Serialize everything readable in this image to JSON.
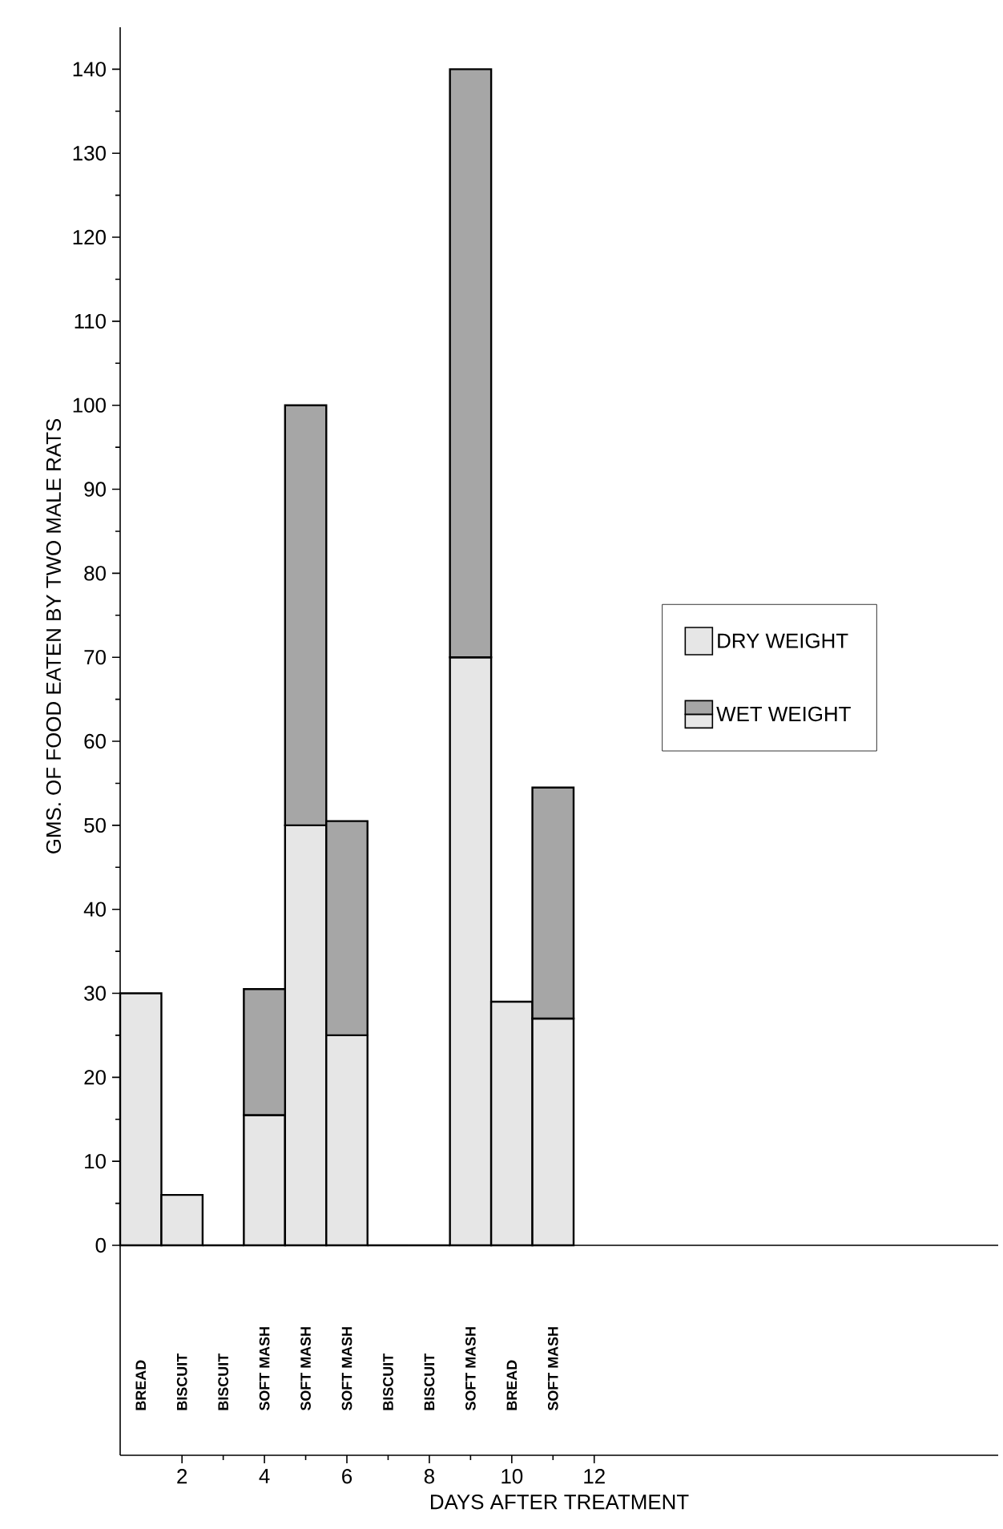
{
  "chart_data": {
    "type": "bar",
    "stacked": true,
    "xlabel": "DAYS AFTER TREATMENT",
    "ylabel": "GMS. OF FOOD EATEN BY TWO MALE RATS",
    "x": [
      1,
      2,
      3,
      4,
      5,
      6,
      7,
      8,
      9,
      10,
      11
    ],
    "xlim": [
      0.5,
      21.8
    ],
    "xticks": [
      2,
      4,
      6,
      8,
      10,
      12
    ],
    "ylim": [
      0,
      145
    ],
    "yticks": [
      0,
      10,
      20,
      30,
      40,
      50,
      60,
      70,
      80,
      90,
      100,
      110,
      120,
      130,
      140
    ],
    "series": [
      {
        "name": "DRY WEIGHT",
        "color": "#e6e6e6",
        "values": [
          30,
          6,
          0,
          15.5,
          50,
          25,
          0,
          0,
          70,
          29,
          27
        ]
      },
      {
        "name": "WET WEIGHT",
        "color": "#a6a6a6",
        "values": [
          null,
          null,
          null,
          15,
          50,
          25.5,
          null,
          null,
          70,
          null,
          27.5
        ]
      }
    ],
    "annotations": [
      "BREAD",
      "BISCUIT",
      "BISCUIT",
      "SOFT MASH",
      "SOFT MASH",
      "SOFT MASH",
      "BISCUIT",
      "BISCUIT",
      "SOFT MASH",
      "BREAD",
      "SOFT MASH"
    ],
    "legend": "right"
  }
}
